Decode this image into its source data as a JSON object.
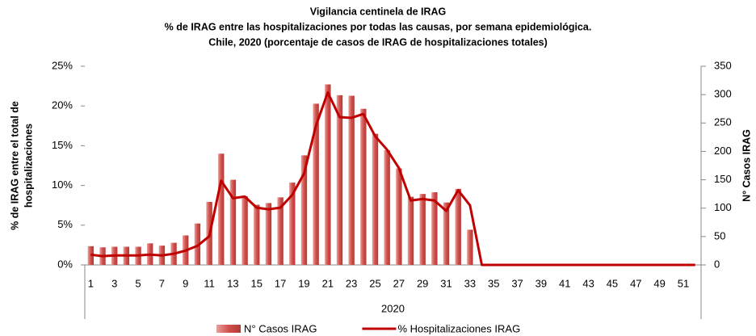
{
  "chart_data": {
    "type": "combo",
    "title": [
      "Vigilancia centinela de IRAG",
      "% de IRAG entre las hospitalizaciones por todas las causas, por semana epidemiológica.",
      "Chile, 2020  (porcentaje de casos de IRAG de hospitalizaciones totales)"
    ],
    "ylabel": [
      "% de IRAG entre el total de",
      "hospitalizaciones"
    ],
    "y2label": "N° Casos IRAG",
    "xlabel": "2020",
    "categories": [
      "1",
      null,
      "3",
      null,
      "5",
      null,
      "7",
      null,
      "9",
      null,
      "11",
      null,
      "13",
      null,
      "15",
      null,
      "17",
      null,
      "19",
      null,
      "21",
      null,
      "23",
      null,
      "25",
      null,
      "27",
      null,
      "29",
      null,
      "31",
      null,
      "33",
      null,
      "35",
      null,
      "37",
      null,
      "39",
      null,
      "41",
      null,
      "43",
      null,
      "45",
      null,
      "47",
      null,
      "49",
      null,
      "51",
      null
    ],
    "ylim": [
      0,
      25
    ],
    "yticks": [
      {
        "value": 0,
        "label": "0%"
      },
      {
        "value": 5,
        "label": "5%"
      },
      {
        "value": 10,
        "label": "10%"
      },
      {
        "value": 15,
        "label": "15%"
      },
      {
        "value": 20,
        "label": "20%"
      },
      {
        "value": 25,
        "label": "25%"
      }
    ],
    "y2lim": [
      0,
      350
    ],
    "y2ticks": [
      0,
      50,
      100,
      150,
      200,
      250,
      300,
      350
    ],
    "series": [
      {
        "name": "N° Casos IRAG",
        "type": "bar",
        "axis": "y2",
        "color": "#c0504d",
        "values": [
          33,
          31,
          32,
          32,
          32,
          38,
          34,
          39,
          52,
          73,
          111,
          196,
          150,
          121,
          106,
          109,
          119,
          145,
          193,
          284,
          318,
          299,
          298,
          275,
          231,
          202,
          170,
          120,
          125,
          128,
          110,
          134,
          62,
          0,
          0,
          0,
          0,
          0,
          0,
          0,
          0,
          0,
          0,
          0,
          0,
          0,
          0,
          0,
          0,
          0,
          0,
          0
        ]
      },
      {
        "name": "% Hospitalizaciones IRAG",
        "type": "line",
        "axis": "y",
        "color": "#c00000",
        "values": [
          1.3,
          1.1,
          1.2,
          1.2,
          1.2,
          1.3,
          1.2,
          1.4,
          1.8,
          2.4,
          3.6,
          10.6,
          8.4,
          8.6,
          7.2,
          7.0,
          7.2,
          8.8,
          11.5,
          17.5,
          21.7,
          18.6,
          18.5,
          19.0,
          16.2,
          14.5,
          12.2,
          8.1,
          8.3,
          8.1,
          6.8,
          9.4,
          7.5,
          0,
          0,
          0,
          0,
          0,
          0,
          0,
          0,
          0,
          0,
          0,
          0,
          0,
          0,
          0,
          0,
          0,
          0,
          0
        ]
      }
    ],
    "legend": "bottom"
  }
}
